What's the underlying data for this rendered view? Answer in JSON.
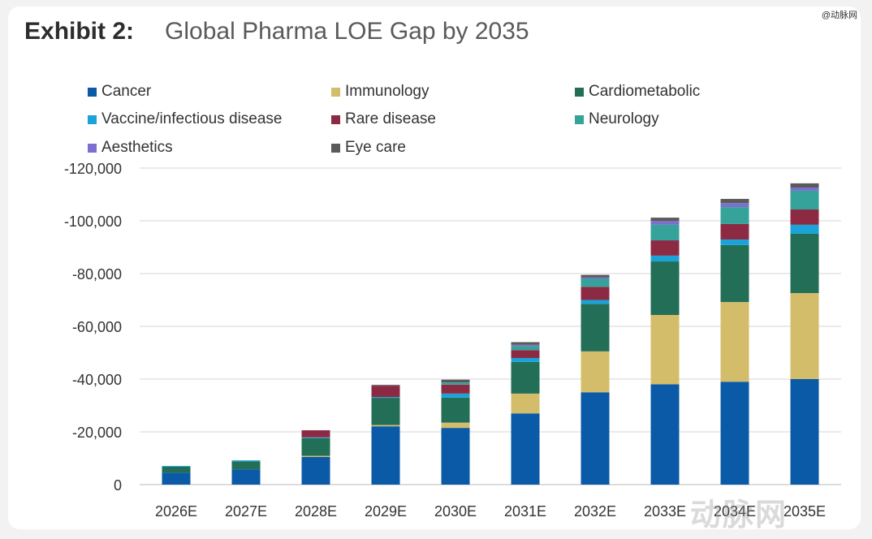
{
  "watermark": "@动脉网",
  "logo_text": "动脉网",
  "chart_data": {
    "type": "bar",
    "stacked": true,
    "title_prefix": "Exhibit 2:",
    "title": "Global Pharma LOE Gap by 2035",
    "xlabel": "",
    "ylabel": "",
    "ylim": [
      0,
      -120000
    ],
    "yticks": [
      0,
      -20000,
      -40000,
      -60000,
      -80000,
      -100000,
      -120000
    ],
    "ytick_labels": [
      "0",
      "-20,000",
      "-40,000",
      "-60,000",
      "-80,000",
      "-100,000",
      "-120,000"
    ],
    "grid": true,
    "legend_position": "top",
    "categories": [
      "2026E",
      "2027E",
      "2028E",
      "2029E",
      "2030E",
      "2031E",
      "2032E",
      "2033E",
      "2034E",
      "2035E"
    ],
    "series": [
      {
        "name": "Cancer",
        "color": "#0b5aa8",
        "values": [
          -4500,
          -5800,
          -10500,
          -22100,
          -21500,
          -27000,
          -35000,
          -38000,
          -39000,
          -40000
        ]
      },
      {
        "name": "Immunology",
        "color": "#d4bd6a",
        "values": [
          0,
          0,
          -400,
          -500,
          -2000,
          -7500,
          -15500,
          -26300,
          -30200,
          -32600
        ]
      },
      {
        "name": "Cardiometabolic",
        "color": "#236e57",
        "values": [
          -2300,
          -3000,
          -6700,
          -10300,
          -9500,
          -12000,
          -18000,
          -20300,
          -21600,
          -22500
        ]
      },
      {
        "name": "Vaccine/infectious disease",
        "color": "#1aa3d9",
        "values": [
          -300,
          -400,
          -300,
          -300,
          -1500,
          -1500,
          -1500,
          -2200,
          -2100,
          -3400
        ]
      },
      {
        "name": "Rare disease",
        "color": "#8c2a43",
        "values": [
          0,
          0,
          -2700,
          -4300,
          -3400,
          -3000,
          -5000,
          -5800,
          -5900,
          -5800
        ]
      },
      {
        "name": "Neurology",
        "color": "#35a39a",
        "values": [
          0,
          0,
          0,
          0,
          -800,
          -1500,
          -3000,
          -5900,
          -6400,
          -7100
        ]
      },
      {
        "name": "Aesthetics",
        "color": "#7b6fd0",
        "values": [
          0,
          0,
          0,
          0,
          0,
          -500,
          -500,
          -1400,
          -1500,
          -1200
        ]
      },
      {
        "name": "Eye care",
        "color": "#5a5a5a",
        "values": [
          0,
          0,
          0,
          -300,
          -1100,
          -1000,
          -1000,
          -1300,
          -1600,
          -1600
        ]
      }
    ]
  }
}
